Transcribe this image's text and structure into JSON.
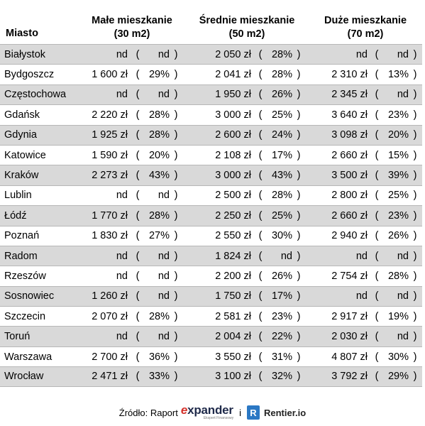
{
  "header": {
    "city": "Miasto",
    "small_line1": "Małe mieszkanie",
    "small_line2": "(30 m2)",
    "mid_line1": "Średnie mieszkanie",
    "mid_line2": "(50 m2)",
    "big_line1": "Duże mieszkanie",
    "big_line2": "(70 m2)"
  },
  "rows": [
    {
      "city": "Białystok",
      "small_price": "nd",
      "small_pct": "nd",
      "mid_price": "2 050 zł",
      "mid_pct": "28%",
      "big_price": "nd",
      "big_pct": "nd"
    },
    {
      "city": "Bydgoszcz",
      "small_price": "1 600 zł",
      "small_pct": "29%",
      "mid_price": "2 041 zł",
      "mid_pct": "28%",
      "big_price": "2 310 zł",
      "big_pct": "13%"
    },
    {
      "city": "Częstochowa",
      "small_price": "nd",
      "small_pct": "nd",
      "mid_price": "1 950 zł",
      "mid_pct": "26%",
      "big_price": "2 345 zł",
      "big_pct": "nd"
    },
    {
      "city": "Gdańsk",
      "small_price": "2 220 zł",
      "small_pct": "28%",
      "mid_price": "3 000 zł",
      "mid_pct": "25%",
      "big_price": "3 640 zł",
      "big_pct": "23%"
    },
    {
      "city": "Gdynia",
      "small_price": "1 925 zł",
      "small_pct": "28%",
      "mid_price": "2 600 zł",
      "mid_pct": "24%",
      "big_price": "3 098 zł",
      "big_pct": "20%"
    },
    {
      "city": "Katowice",
      "small_price": "1 590 zł",
      "small_pct": "20%",
      "mid_price": "2 108 zł",
      "mid_pct": "17%",
      "big_price": "2 660 zł",
      "big_pct": "15%"
    },
    {
      "city": "Kraków",
      "small_price": "2 273 zł",
      "small_pct": "43%",
      "mid_price": "3 000 zł",
      "mid_pct": "43%",
      "big_price": "3 500 zł",
      "big_pct": "39%"
    },
    {
      "city": "Lublin",
      "small_price": "nd",
      "small_pct": "nd",
      "mid_price": "2 500 zł",
      "mid_pct": "28%",
      "big_price": "2 800 zł",
      "big_pct": "25%"
    },
    {
      "city": "Łódź",
      "small_price": "1 770 zł",
      "small_pct": "28%",
      "mid_price": "2 250 zł",
      "mid_pct": "25%",
      "big_price": "2 660 zł",
      "big_pct": "23%"
    },
    {
      "city": "Poznań",
      "small_price": "1 830 zł",
      "small_pct": "27%",
      "mid_price": "2 550 zł",
      "mid_pct": "30%",
      "big_price": "2 940 zł",
      "big_pct": "26%"
    },
    {
      "city": "Radom",
      "small_price": "nd",
      "small_pct": "nd",
      "mid_price": "1 824 zł",
      "mid_pct": "nd",
      "big_price": "nd",
      "big_pct": "nd"
    },
    {
      "city": "Rzeszów",
      "small_price": "nd",
      "small_pct": "nd",
      "mid_price": "2 200 zł",
      "mid_pct": "26%",
      "big_price": "2 754 zł",
      "big_pct": "28%"
    },
    {
      "city": "Sosnowiec",
      "small_price": "1 260 zł",
      "small_pct": "nd",
      "mid_price": "1 750 zł",
      "mid_pct": "17%",
      "big_price": "nd",
      "big_pct": "nd"
    },
    {
      "city": "Szczecin",
      "small_price": "2 070 zł",
      "small_pct": "28%",
      "mid_price": "2 581 zł",
      "mid_pct": "23%",
      "big_price": "2 917 zł",
      "big_pct": "19%"
    },
    {
      "city": "Toruń",
      "small_price": "nd",
      "small_pct": "nd",
      "mid_price": "2 004 zł",
      "mid_pct": "22%",
      "big_price": "2 030 zł",
      "big_pct": "nd"
    },
    {
      "city": "Warszawa",
      "small_price": "2 700 zł",
      "small_pct": "36%",
      "mid_price": "3 550 zł",
      "mid_pct": "31%",
      "big_price": "4 807 zł",
      "big_pct": "30%"
    },
    {
      "city": "Wrocław",
      "small_price": "2 471 zł",
      "small_pct": "33%",
      "mid_price": "3 100 zł",
      "mid_pct": "32%",
      "big_price": "3 792 zł",
      "big_pct": "29%"
    }
  ],
  "symbols": {
    "open_paren": "(",
    "close_paren": ")"
  },
  "footer": {
    "source_label": "Źródło: Raport",
    "expander_e": "e",
    "expander_rest": "xpander",
    "expander_sub": "Ekspert Finansowy",
    "and": "i",
    "rentier_icon_letter": "R",
    "rentier_name": "Rentier.io"
  },
  "colors": {
    "stripe": "#d9d9d9",
    "expander_red": "#d4322c",
    "expander_navy": "#1f2a4a",
    "rentier_blue": "#2b78c4"
  }
}
